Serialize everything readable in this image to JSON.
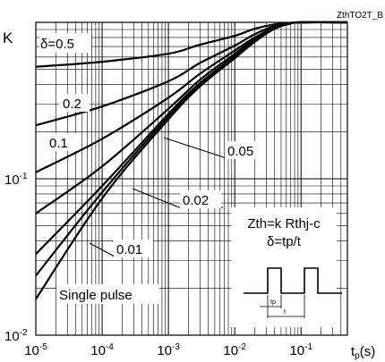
{
  "chart_data": {
    "type": "line",
    "code": "ZthTO2T_B",
    "ylabel": "K",
    "xlabel_main": "t",
    "xlabel_sub": "p",
    "xlabel_unit": "(s)",
    "x_scale": "log",
    "y_scale": "log",
    "xlim": [
      1e-05,
      0.5
    ],
    "ylim": [
      0.01,
      1
    ],
    "grid": true,
    "x_tick_labels": [
      {
        "value": 1e-05,
        "base": "10",
        "exp": "-5"
      },
      {
        "value": 0.0001,
        "base": "10",
        "exp": "-4"
      },
      {
        "value": 0.001,
        "base": "10",
        "exp": "-3"
      },
      {
        "value": 0.01,
        "base": "10",
        "exp": "-2"
      },
      {
        "value": 0.1,
        "base": "10",
        "exp": "-1"
      }
    ],
    "y_tick_labels": [
      {
        "value": 0.01,
        "base": "10",
        "exp": "-2"
      },
      {
        "value": 0.1,
        "base": "10",
        "exp": "-1"
      }
    ],
    "series": [
      {
        "name": "δ=0.5",
        "points": [
          [
            1e-05,
            0.52
          ],
          [
            0.0001,
            0.56
          ],
          [
            0.001,
            0.63
          ],
          [
            0.003,
            0.72
          ],
          [
            0.01,
            0.82
          ],
          [
            0.02,
            0.91
          ],
          [
            0.04,
            0.97
          ],
          [
            0.07,
            0.99
          ],
          [
            0.1,
            1.0
          ],
          [
            0.5,
            1.0
          ]
        ]
      },
      {
        "name": "0.2",
        "points": [
          [
            1e-05,
            0.22
          ],
          [
            0.0001,
            0.29
          ],
          [
            0.001,
            0.42
          ],
          [
            0.003,
            0.55
          ],
          [
            0.01,
            0.71
          ],
          [
            0.02,
            0.84
          ],
          [
            0.04,
            0.95
          ],
          [
            0.07,
            0.99
          ],
          [
            0.1,
            1.0
          ],
          [
            0.5,
            1.0
          ]
        ]
      },
      {
        "name": "0.1",
        "points": [
          [
            1e-05,
            0.11
          ],
          [
            0.0001,
            0.18
          ],
          [
            0.001,
            0.33
          ],
          [
            0.003,
            0.47
          ],
          [
            0.01,
            0.66
          ],
          [
            0.02,
            0.8
          ],
          [
            0.04,
            0.93
          ],
          [
            0.07,
            0.99
          ],
          [
            0.1,
            1.0
          ],
          [
            0.5,
            1.0
          ]
        ]
      },
      {
        "name": "0.05",
        "points": [
          [
            1e-05,
            0.06
          ],
          [
            0.0001,
            0.12
          ],
          [
            0.001,
            0.28
          ],
          [
            0.003,
            0.43
          ],
          [
            0.01,
            0.63
          ],
          [
            0.02,
            0.78
          ],
          [
            0.04,
            0.92
          ],
          [
            0.07,
            0.985
          ],
          [
            0.1,
            1.0
          ],
          [
            0.5,
            1.0
          ]
        ]
      },
      {
        "name": "0.02",
        "points": [
          [
            1e-05,
            0.033
          ],
          [
            0.0001,
            0.09
          ],
          [
            0.001,
            0.26
          ],
          [
            0.003,
            0.41
          ],
          [
            0.01,
            0.61
          ],
          [
            0.02,
            0.77
          ],
          [
            0.04,
            0.92
          ],
          [
            0.07,
            0.985
          ],
          [
            0.1,
            1.0
          ],
          [
            0.5,
            1.0
          ]
        ]
      },
      {
        "name": "0.01",
        "points": [
          [
            1e-05,
            0.024
          ],
          [
            0.0001,
            0.082
          ],
          [
            0.001,
            0.25
          ],
          [
            0.003,
            0.4
          ],
          [
            0.01,
            0.6
          ],
          [
            0.02,
            0.76
          ],
          [
            0.04,
            0.915
          ],
          [
            0.07,
            0.985
          ],
          [
            0.1,
            1.0
          ],
          [
            0.5,
            1.0
          ]
        ]
      },
      {
        "name": "Single pulse",
        "points": [
          [
            1e-05,
            0.017
          ],
          [
            0.0001,
            0.075
          ],
          [
            0.001,
            0.24
          ],
          [
            0.003,
            0.39
          ],
          [
            0.01,
            0.59
          ],
          [
            0.02,
            0.75
          ],
          [
            0.04,
            0.91
          ],
          [
            0.07,
            0.985
          ],
          [
            0.1,
            1.0
          ],
          [
            0.5,
            1.0
          ]
        ]
      }
    ],
    "annotations": {
      "formula1": "Zth=k Rthj-c",
      "formula2": "δ=tp/t",
      "pulse_tp": "tp",
      "pulse_t": "t"
    }
  }
}
